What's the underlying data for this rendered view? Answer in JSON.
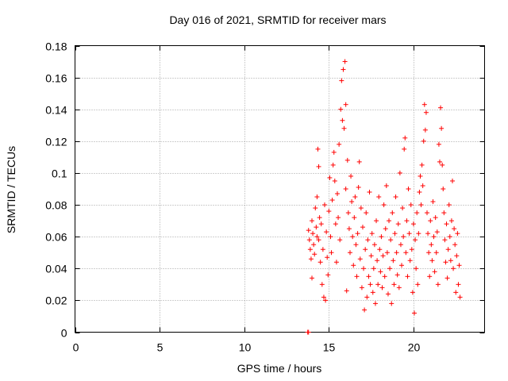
{
  "chart_data": {
    "type": "scatter",
    "title": "Day 016 of 2021, SRMTID for receiver mars",
    "xlabel": "GPS time / hours",
    "ylabel": "SRMTID / TECUs",
    "xlim": [
      0,
      24.2
    ],
    "ylim": [
      0,
      0.18
    ],
    "x_ticks": [
      0,
      5,
      10,
      15,
      20
    ],
    "x_tick_labels": [
      "0",
      "5",
      "10",
      "15",
      "20"
    ],
    "y_ticks": [
      0,
      0.02,
      0.04,
      0.06,
      0.08,
      0.1,
      0.12,
      0.14,
      0.16,
      0.18
    ],
    "y_tick_labels": [
      "0",
      "0.02",
      "0.04",
      "0.06",
      "0.08",
      "0.1",
      "0.12",
      "0.14",
      "0.16",
      "0.18"
    ],
    "grid": true,
    "marker": "+",
    "color": "#ff0000",
    "series": [
      {
        "name": "SRMTID",
        "points": [
          [
            13.75,
            0.0
          ],
          [
            13.8,
            0.0
          ],
          [
            13.8,
            0.064
          ],
          [
            13.85,
            0.058
          ],
          [
            13.9,
            0.052
          ],
          [
            13.95,
            0.046
          ],
          [
            14.0,
            0.034
          ],
          [
            14.0,
            0.07
          ],
          [
            14.05,
            0.062
          ],
          [
            14.1,
            0.055
          ],
          [
            14.15,
            0.049
          ],
          [
            14.2,
            0.078
          ],
          [
            14.25,
            0.066
          ],
          [
            14.3,
            0.06
          ],
          [
            14.3,
            0.085
          ],
          [
            14.35,
            0.115
          ],
          [
            14.4,
            0.104
          ],
          [
            14.4,
            0.058
          ],
          [
            14.45,
            0.072
          ],
          [
            14.5,
            0.044
          ],
          [
            14.55,
            0.068
          ],
          [
            14.6,
            0.03
          ],
          [
            14.65,
            0.052
          ],
          [
            14.7,
            0.022
          ],
          [
            14.75,
            0.08
          ],
          [
            14.8,
            0.02
          ],
          [
            14.85,
            0.063
          ],
          [
            14.9,
            0.047
          ],
          [
            14.95,
            0.036
          ],
          [
            15.0,
            0.076
          ],
          [
            15.05,
            0.097
          ],
          [
            15.1,
            0.06
          ],
          [
            15.15,
            0.05
          ],
          [
            15.2,
            0.083
          ],
          [
            15.25,
            0.105
          ],
          [
            15.3,
            0.113
          ],
          [
            15.35,
            0.095
          ],
          [
            15.4,
            0.068
          ],
          [
            15.45,
            0.044
          ],
          [
            15.5,
            0.087
          ],
          [
            15.55,
            0.072
          ],
          [
            15.6,
            0.118
          ],
          [
            15.65,
            0.058
          ],
          [
            15.7,
            0.14
          ],
          [
            15.75,
            0.158
          ],
          [
            15.8,
            0.133
          ],
          [
            15.85,
            0.165
          ],
          [
            15.9,
            0.128
          ],
          [
            15.95,
            0.17
          ],
          [
            16.0,
            0.143
          ],
          [
            16.0,
            0.09
          ],
          [
            16.05,
            0.026
          ],
          [
            16.1,
            0.108
          ],
          [
            16.15,
            0.075
          ],
          [
            16.2,
            0.065
          ],
          [
            16.25,
            0.05
          ],
          [
            16.3,
            0.098
          ],
          [
            16.35,
            0.082
          ],
          [
            16.4,
            0.06
          ],
          [
            16.45,
            0.042
          ],
          [
            16.5,
            0.072
          ],
          [
            16.55,
            0.085
          ],
          [
            16.6,
            0.055
          ],
          [
            16.65,
            0.035
          ],
          [
            16.7,
            0.062
          ],
          [
            16.75,
            0.091
          ],
          [
            16.8,
            0.107
          ],
          [
            16.85,
            0.046
          ],
          [
            16.9,
            0.078
          ],
          [
            16.95,
            0.028
          ],
          [
            17.0,
            0.066
          ],
          [
            17.05,
            0.04
          ],
          [
            17.1,
            0.014
          ],
          [
            17.15,
            0.052
          ],
          [
            17.2,
            0.075
          ],
          [
            17.25,
            0.022
          ],
          [
            17.3,
            0.058
          ],
          [
            17.35,
            0.035
          ],
          [
            17.4,
            0.088
          ],
          [
            17.45,
            0.03
          ],
          [
            17.5,
            0.048
          ],
          [
            17.55,
            0.062
          ],
          [
            17.6,
            0.025
          ],
          [
            17.65,
            0.04
          ],
          [
            17.7,
            0.055
          ],
          [
            17.75,
            0.018
          ],
          [
            17.8,
            0.07
          ],
          [
            17.85,
            0.045
          ],
          [
            17.9,
            0.03
          ],
          [
            17.95,
            0.085
          ],
          [
            18.0,
            0.052
          ],
          [
            18.05,
            0.038
          ],
          [
            18.1,
            0.06
          ],
          [
            18.15,
            0.028
          ],
          [
            18.2,
            0.048
          ],
          [
            18.25,
            0.08
          ],
          [
            18.3,
            0.035
          ],
          [
            18.35,
            0.065
          ],
          [
            18.4,
            0.092
          ],
          [
            18.45,
            0.05
          ],
          [
            18.5,
            0.024
          ],
          [
            18.55,
            0.07
          ],
          [
            18.6,
            0.04
          ],
          [
            18.65,
            0.058
          ],
          [
            18.7,
            0.018
          ],
          [
            18.75,
            0.075
          ],
          [
            18.8,
            0.045
          ],
          [
            18.85,
            0.03
          ],
          [
            18.9,
            0.062
          ],
          [
            18.95,
            0.085
          ],
          [
            19.0,
            0.05
          ],
          [
            19.05,
            0.036
          ],
          [
            19.1,
            0.068
          ],
          [
            19.15,
            0.028
          ],
          [
            19.2,
            0.1
          ],
          [
            19.25,
            0.055
          ],
          [
            19.3,
            0.042
          ],
          [
            19.35,
            0.078
          ],
          [
            19.4,
            0.06
          ],
          [
            19.45,
            0.115
          ],
          [
            19.5,
            0.122
          ],
          [
            19.55,
            0.05
          ],
          [
            19.6,
            0.07
          ],
          [
            19.65,
            0.035
          ],
          [
            19.7,
            0.09
          ],
          [
            19.75,
            0.062
          ],
          [
            19.8,
            0.045
          ],
          [
            19.85,
            0.08
          ],
          [
            19.9,
            0.052
          ],
          [
            19.95,
            0.025
          ],
          [
            20.0,
            0.068
          ],
          [
            20.05,
            0.012
          ],
          [
            20.1,
            0.058
          ],
          [
            20.15,
            0.04
          ],
          [
            20.2,
            0.075
          ],
          [
            20.25,
            0.03
          ],
          [
            20.3,
            0.062
          ],
          [
            20.35,
            0.088
          ],
          [
            20.4,
            0.098
          ],
          [
            20.45,
            0.08
          ],
          [
            20.5,
            0.105
          ],
          [
            20.55,
            0.092
          ],
          [
            20.6,
            0.12
          ],
          [
            20.65,
            0.143
          ],
          [
            20.7,
            0.127
          ],
          [
            20.75,
            0.138
          ],
          [
            20.8,
            0.075
          ],
          [
            20.85,
            0.062
          ],
          [
            20.9,
            0.05
          ],
          [
            20.95,
            0.035
          ],
          [
            21.0,
            0.07
          ],
          [
            21.05,
            0.055
          ],
          [
            21.1,
            0.045
          ],
          [
            21.15,
            0.082
          ],
          [
            21.2,
            0.06
          ],
          [
            21.25,
            0.038
          ],
          [
            21.3,
            0.072
          ],
          [
            21.35,
            0.05
          ],
          [
            21.4,
            0.063
          ],
          [
            21.45,
            0.03
          ],
          [
            21.5,
            0.118
          ],
          [
            21.55,
            0.107
          ],
          [
            21.6,
            0.141
          ],
          [
            21.65,
            0.128
          ],
          [
            21.7,
            0.105
          ],
          [
            21.75,
            0.09
          ],
          [
            21.8,
            0.075
          ],
          [
            21.85,
            0.058
          ],
          [
            21.9,
            0.044
          ],
          [
            21.95,
            0.068
          ],
          [
            22.0,
            0.034
          ],
          [
            22.05,
            0.052
          ],
          [
            22.1,
            0.08
          ],
          [
            22.15,
            0.06
          ],
          [
            22.2,
            0.045
          ],
          [
            22.25,
            0.07
          ],
          [
            22.3,
            0.095
          ],
          [
            22.35,
            0.04
          ],
          [
            22.4,
            0.065
          ],
          [
            22.45,
            0.055
          ],
          [
            22.5,
            0.025
          ],
          [
            22.55,
            0.048
          ],
          [
            22.6,
            0.062
          ],
          [
            22.65,
            0.03
          ],
          [
            22.7,
            0.042
          ],
          [
            22.75,
            0.022
          ]
        ]
      }
    ]
  }
}
